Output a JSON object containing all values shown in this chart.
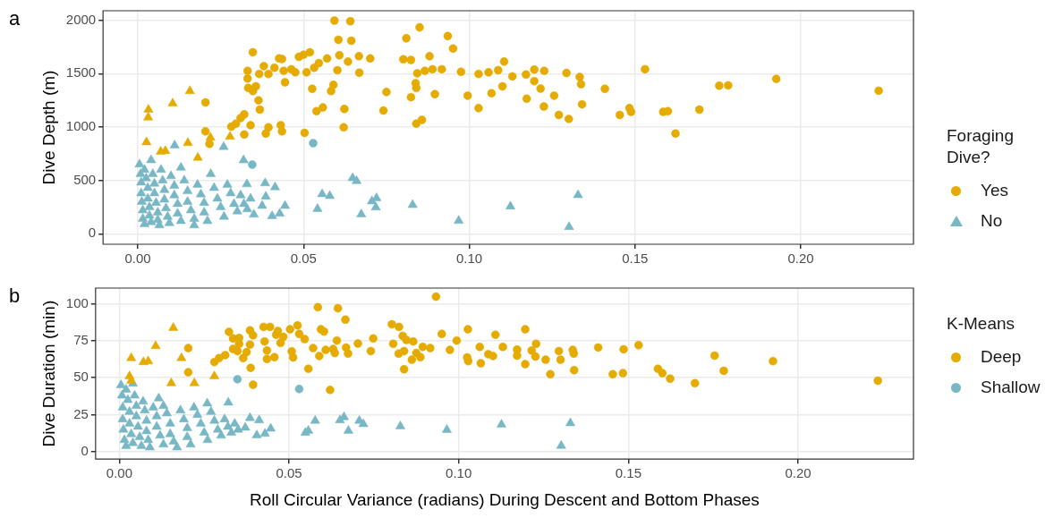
{
  "chart_data": [
    {
      "type": "scatter",
      "title": "a",
      "ylabel": "Dive Depth (m)",
      "legend_title": "Foraging Dive?",
      "legend": "right",
      "grid": true,
      "xlim": [
        -0.0105,
        0.234
      ],
      "ylim": [
        -98,
        2089
      ],
      "xticks": [
        {
          "value": 0,
          "label": "0.00"
        },
        {
          "value": 0.05,
          "label": "0.05"
        },
        {
          "value": 0.1,
          "label": "0.10"
        },
        {
          "value": 0.15,
          "label": "0.15"
        },
        {
          "value": 0.2,
          "label": "0.20"
        }
      ],
      "yticks": [
        0,
        500,
        1000,
        1500,
        2000
      ],
      "series": [
        {
          "name": "Yes",
          "marker": "circle",
          "x": [
            0.0347,
            0.0593,
            0.0641,
            0.0605,
            0.0644,
            0.081,
            0.085,
            0.0935,
            0.0951,
            0.0426,
            0.0435,
            0.0486,
            0.05,
            0.0519,
            0.0571,
            0.0608,
            0.0634,
            0.0667,
            0.0701,
            0.0801,
            0.0824,
            0.088,
            0.0331,
            0.0331,
            0.038,
            0.0366,
            0.0394,
            0.0412,
            0.044,
            0.0463,
            0.0475,
            0.0509,
            0.0532,
            0.0546,
            0.0602,
            0.0668,
            0.0843,
            0.0866,
            0.0889,
            0.0917,
            0.0975,
            0.1028,
            0.1058,
            0.0333,
            0.0356,
            0.0347,
            0.0444,
            0.0526,
            0.0583,
            0.059,
            0.075,
            0.0838,
            0.084,
            0.0896,
            0.0824,
            0.0995,
            0.0204,
            0.0364,
            0.0368,
            0.0321,
            0.031,
            0.0296,
            0.0282,
            0.034,
            0.0394,
            0.0431,
            0.0435,
            0.0386,
            0.0321,
            0.0204,
            0.0216,
            0.0503,
            0.0539,
            0.0558,
            0.0623,
            0.0621,
            0.0741,
            0.084,
            0.0857,
            0.1028,
            0.1087,
            0.1105,
            0.113,
            0.1067,
            0.11,
            0.1171,
            0.1196,
            0.1196,
            0.1226,
            0.1215,
            0.1173,
            0.1225,
            0.1256,
            0.1293,
            0.1333,
            0.1337,
            0.127,
            0.13,
            0.134,
            0.1409,
            0.153,
            0.1454,
            0.1483,
            0.1488,
            0.1585,
            0.1599,
            0.1622,
            0.1694,
            0.1754,
            0.1781,
            0.1926,
            0.2235,
            0.0345,
            0.0529
          ],
          "values": [
            1700,
            1997,
            1991,
            1817,
            1808,
            1831,
            1933,
            1852,
            1735,
            1642,
            1637,
            1657,
            1677,
            1700,
            1642,
            1672,
            1613,
            1663,
            1642,
            1634,
            1628,
            1663,
            1526,
            1454,
            1570,
            1497,
            1497,
            1555,
            1526,
            1541,
            1512,
            1512,
            1555,
            1599,
            1532,
            1509,
            1503,
            1526,
            1541,
            1541,
            1517,
            1497,
            1512,
            1366,
            1381,
            1337,
            1419,
            1358,
            1337,
            1395,
            1328,
            1410,
            1366,
            1308,
            1279,
            1294,
            1230,
            1250,
            1163,
            1119,
            1084,
            1032,
            1003,
            1017,
            997,
            1017,
            959,
            939,
            930,
            959,
            843,
            945,
            1148,
            1183,
            1169,
            997,
            1154,
            1032,
            1067,
            1177,
            1532,
            1613,
            1474,
            1317,
            1381,
            1491,
            1538,
            1430,
            1526,
            1360,
            1265,
            1192,
            1294,
            1506,
            1468,
            1401,
            1113,
            1076,
            1212,
            1358,
            1541,
            1113,
            1177,
            1142,
            1142,
            1148,
            939,
            1163,
            1387,
            1390,
            1451,
            1340,
            648,
            849
          ],
          "colors": [
            "#e5ab00",
            "#e5ab00",
            "#e5ab00",
            "#e5ab00",
            "#e5ab00",
            "#e5ab00",
            "#e5ab00",
            "#e5ab00",
            "#e5ab00",
            "#e5ab00",
            "#e5ab00",
            "#e5ab00",
            "#e5ab00",
            "#e5ab00",
            "#e5ab00",
            "#e5ab00",
            "#e5ab00",
            "#e5ab00",
            "#e5ab00",
            "#e5ab00",
            "#e5ab00",
            "#e5ab00",
            "#e5ab00",
            "#e5ab00",
            "#e5ab00",
            "#e5ab00",
            "#e5ab00",
            "#e5ab00",
            "#e5ab00",
            "#e5ab00",
            "#e5ab00",
            "#e5ab00",
            "#e5ab00",
            "#e5ab00",
            "#e5ab00",
            "#e5ab00",
            "#e5ab00",
            "#e5ab00",
            "#e5ab00",
            "#e5ab00",
            "#e5ab00",
            "#e5ab00",
            "#e5ab00",
            "#e5ab00",
            "#e5ab00",
            "#e5ab00",
            "#e5ab00",
            "#e5ab00",
            "#e5ab00",
            "#e5ab00",
            "#e5ab00",
            "#e5ab00",
            "#e5ab00",
            "#e5ab00",
            "#e5ab00",
            "#e5ab00",
            "#e5ab00",
            "#e5ab00",
            "#e5ab00",
            "#e5ab00",
            "#e5ab00",
            "#e5ab00",
            "#e5ab00",
            "#e5ab00",
            "#e5ab00",
            "#e5ab00",
            "#e5ab00",
            "#e5ab00",
            "#e5ab00",
            "#e5ab00",
            "#e5ab00",
            "#e5ab00",
            "#e5ab00",
            "#e5ab00",
            "#e5ab00",
            "#e5ab00",
            "#e5ab00",
            "#e5ab00",
            "#e5ab00",
            "#e5ab00",
            "#e5ab00",
            "#e5ab00",
            "#e5ab00",
            "#e5ab00",
            "#e5ab00",
            "#e5ab00",
            "#e5ab00",
            "#e5ab00",
            "#e5ab00",
            "#e5ab00",
            "#e5ab00",
            "#e5ab00",
            "#e5ab00",
            "#e5ab00",
            "#e5ab00",
            "#e5ab00",
            "#e5ab00",
            "#e5ab00",
            "#e5ab00",
            "#e5ab00",
            "#e5ab00",
            "#e5ab00",
            "#e5ab00",
            "#e5ab00",
            "#e5ab00",
            "#e5ab00",
            "#e5ab00",
            "#e5ab00",
            "#e5ab00",
            "#e5ab00",
            "#e5ab00",
            "#e5ab00",
            "#78b7c5",
            "#78b7c5"
          ]
        },
        {
          "name": "No",
          "marker": "triangle",
          "x": [
            0.0005,
            0.0008,
            0.001,
            0.001,
            0.0012,
            0.0015,
            0.0015,
            0.002,
            0.002,
            0.0025,
            0.003,
            0.003,
            0.0035,
            0.0035,
            0.004,
            0.004,
            0.0045,
            0.005,
            0.005,
            0.0055,
            0.006,
            0.006,
            0.0065,
            0.007,
            0.0075,
            0.008,
            0.008,
            0.0085,
            0.009,
            0.0095,
            0.01,
            0.011,
            0.011,
            0.012,
            0.012,
            0.013,
            0.013,
            0.014,
            0.015,
            0.015,
            0.016,
            0.017,
            0.017,
            0.018,
            0.019,
            0.02,
            0.02,
            0.021,
            0.022,
            0.023,
            0.024,
            0.025,
            0.026,
            0.027,
            0.028,
            0.029,
            0.03,
            0.031,
            0.032,
            0.033,
            0.034,
            0.035,
            0.0111,
            0.0259,
            0.0319,
            0.0384,
            0.0414,
            0.0329,
            0.0386,
            0.0375,
            0.0444,
            0.0405,
            0.0428,
            0.0542,
            0.0556,
            0.0579,
            0.0648,
            0.066,
            0.0674,
            0.0706,
            0.072,
            0.0718,
            0.0829,
            0.0968,
            0.1124,
            0.1328,
            0.1301,
            0.0032,
            0.0031,
            0.0026,
            0.0105,
            0.0157,
            0.0069,
            0.0083,
            0.0151,
            0.0181,
            0.0219,
            0.0278
          ],
          "values": [
            650,
            560,
            480,
            380,
            300,
            220,
            140,
            90,
            600,
            520,
            430,
            330,
            250,
            170,
            110,
            690,
            560,
            470,
            380,
            290,
            200,
            130,
            80,
            600,
            500,
            410,
            320,
            240,
            160,
            100,
            540,
            450,
            360,
            280,
            190,
            120,
            620,
            500,
            400,
            300,
            220,
            140,
            80,
            460,
            370,
            290,
            200,
            120,
            560,
            430,
            330,
            250,
            160,
            460,
            380,
            280,
            210,
            360,
            280,
            230,
            330,
            180,
            828,
            814,
            689,
            474,
            436,
            465,
            349,
            262,
            262,
            166,
            189,
            233,
            372,
            355,
            523,
            494,
            183,
            305,
            334,
            247,
            270,
            122,
            256,
            363,
            64,
            1163,
            1090,
            858,
            1221,
            1337,
            770,
            776,
            852,
            712,
            901,
            910
          ],
          "colors": [
            "#78b7c5",
            "#78b7c5",
            "#78b7c5",
            "#78b7c5",
            "#78b7c5",
            "#78b7c5",
            "#78b7c5",
            "#78b7c5",
            "#78b7c5",
            "#78b7c5",
            "#78b7c5",
            "#78b7c5",
            "#78b7c5",
            "#78b7c5",
            "#78b7c5",
            "#78b7c5",
            "#78b7c5",
            "#78b7c5",
            "#78b7c5",
            "#78b7c5",
            "#78b7c5",
            "#78b7c5",
            "#78b7c5",
            "#78b7c5",
            "#78b7c5",
            "#78b7c5",
            "#78b7c5",
            "#78b7c5",
            "#78b7c5",
            "#78b7c5",
            "#78b7c5",
            "#78b7c5",
            "#78b7c5",
            "#78b7c5",
            "#78b7c5",
            "#78b7c5",
            "#78b7c5",
            "#78b7c5",
            "#78b7c5",
            "#78b7c5",
            "#78b7c5",
            "#78b7c5",
            "#78b7c5",
            "#78b7c5",
            "#78b7c5",
            "#78b7c5",
            "#78b7c5",
            "#78b7c5",
            "#78b7c5",
            "#78b7c5",
            "#78b7c5",
            "#78b7c5",
            "#78b7c5",
            "#78b7c5",
            "#78b7c5",
            "#78b7c5",
            "#78b7c5",
            "#78b7c5",
            "#78b7c5",
            "#78b7c5",
            "#78b7c5",
            "#78b7c5",
            "#78b7c5",
            "#78b7c5",
            "#78b7c5",
            "#78b7c5",
            "#78b7c5",
            "#78b7c5",
            "#78b7c5",
            "#78b7c5",
            "#78b7c5",
            "#78b7c5",
            "#78b7c5",
            "#78b7c5",
            "#78b7c5",
            "#78b7c5",
            "#78b7c5",
            "#78b7c5",
            "#78b7c5",
            "#78b7c5",
            "#78b7c5",
            "#78b7c5",
            "#78b7c5",
            "#78b7c5",
            "#78b7c5",
            "#78b7c5",
            "#78b7c5",
            "#e5ab00",
            "#e5ab00",
            "#e5ab00",
            "#e5ab00",
            "#e5ab00",
            "#e5ab00",
            "#e5ab00",
            "#e5ab00",
            "#e5ab00",
            "#e5ab00",
            "#e5ab00"
          ]
        }
      ]
    },
    {
      "type": "scatter",
      "title": "b",
      "xlabel": "Roll Circular Variance (radians) During Descent and Bottom Phases",
      "ylabel": "Dive Duration (min)",
      "legend_title": "K-Means",
      "legend": "right",
      "grid": true,
      "xlim": [
        -0.007,
        0.234
      ],
      "ylim": [
        -4.9,
        110.5
      ],
      "xticks": [
        {
          "value": 0,
          "label": "0.00"
        },
        {
          "value": 0.05,
          "label": "0.05"
        },
        {
          "value": 0.1,
          "label": "0.10"
        },
        {
          "value": 0.15,
          "label": "0.15"
        },
        {
          "value": 0.2,
          "label": "0.20"
        }
      ],
      "yticks": [
        0,
        25,
        50,
        75,
        100
      ],
      "series": [
        {
          "name": "Deep",
          "marker": "circle",
          "color": "#e5ab00",
          "x": [
            0.0933,
            0.0585,
            0.0644,
            0.0666,
            0.0803,
            0.0824,
            0.095,
            0.1027,
            0.0323,
            0.0385,
            0.0425,
            0.0444,
            0.0467,
            0.0503,
            0.0525,
            0.0594,
            0.0603,
            0.0335,
            0.0353,
            0.0394,
            0.0462,
            0.0483,
            0.053,
            0.0546,
            0.0641,
            0.0748,
            0.0835,
            0.0846,
            0.0866,
            0.0994,
            0.1062,
            0.0203,
            0.0353,
            0.0385,
            0.0428,
            0.0475,
            0.0703,
            0.0807,
            0.0894,
            0.0916,
            0.0974,
            0.0335,
            0.0348,
            0.0375,
            0.0435,
            0.0508,
            0.0571,
            0.0608,
            0.063,
            0.0668,
            0.0741,
            0.0839,
            0.0875,
            0.0312,
            0.0294,
            0.028,
            0.0365,
            0.0435,
            0.0457,
            0.0512,
            0.0589,
            0.0635,
            0.0674,
            0.0823,
            0.0862,
            0.0887,
            0.1025,
            0.1028,
            0.1065,
            0.0387,
            0.0557,
            0.0839,
            0.0203,
            0.0394,
            0.0621,
            0.1108,
            0.1196,
            0.113,
            0.1087,
            0.1101,
            0.1172,
            0.1172,
            0.1196,
            0.1215,
            0.1228,
            0.1226,
            0.1256,
            0.127,
            0.1295,
            0.13,
            0.1336,
            0.1339,
            0.134,
            0.1411,
            0.1454,
            0.1484,
            0.1486,
            0.153,
            0.1587,
            0.16,
            0.1623,
            0.1696,
            0.1754,
            0.1781,
            0.1926,
            0.2235
          ],
          "values": [
            104.7,
            97.6,
            96.9,
            89.2,
            86.1,
            84.3,
            79.6,
            82.7,
            81,
            82,
            84.3,
            84.3,
            81.6,
            82.7,
            85.3,
            82.7,
            81.2,
            76.5,
            76.9,
            78.6,
            79,
            77.6,
            79.6,
            76.1,
            75.1,
            76.5,
            78.2,
            75.5,
            74.5,
            75.1,
            70.8,
            70,
            72.9,
            72.4,
            74.5,
            73.5,
            73.1,
            72.9,
            70.8,
            70,
            68.8,
            69.4,
            68,
            67.3,
            68.4,
            67.8,
            70,
            68.8,
            69.4,
            70.4,
            68,
            68,
            66.7,
            65.3,
            63.3,
            60.6,
            63.3,
            62.7,
            63.9,
            63.7,
            64.7,
            66.7,
            66.3,
            66.3,
            62.2,
            63.9,
            63.7,
            61.2,
            59.8,
            56.7,
            56.1,
            55.7,
            53.7,
            45.3,
            41.8,
            79,
            82.7,
            70.8,
            65.9,
            64.7,
            69,
            64.9,
            59.2,
            68.4,
            72.9,
            64.3,
            62.2,
            52.4,
            68,
            62.2,
            68.8,
            66.3,
            55.1,
            70.4,
            52.4,
            53.1,
            69.2,
            72,
            56.1,
            53.1,
            49.4,
            46.3,
            64.9,
            54.7,
            61.2,
            48
          ]
        },
        {
          "marker": "triangle",
          "color": "#e5ab00",
          "x": [
            0.0035,
            0.003,
            0.0035,
            0.0071,
            0.0085,
            0.0107,
            0.0159,
            0.0183,
            0.0153,
            0.0221,
            0.028
          ],
          "values": [
            63.3,
            51,
            48,
            60.6,
            61.2,
            71.4,
            83.7,
            63.3,
            46.3,
            46.3,
            51
          ]
        },
        {
          "name": "Shallow",
          "marker": "circle",
          "color": "#78b7c5",
          "x": [
            0.0348,
            0.053
          ],
          "values": [
            49,
            42.4
          ]
        },
        {
          "marker": "triangle",
          "color": "#78b7c5",
          "x": [
            0.0005,
            0.0008,
            0.001,
            0.001,
            0.0012,
            0.0015,
            0.002,
            0.002,
            0.0025,
            0.003,
            0.003,
            0.0035,
            0.004,
            0.004,
            0.0045,
            0.005,
            0.005,
            0.0055,
            0.006,
            0.0065,
            0.007,
            0.0075,
            0.008,
            0.008,
            0.0085,
            0.009,
            0.01,
            0.011,
            0.011,
            0.012,
            0.013,
            0.013,
            0.014,
            0.015,
            0.015,
            0.016,
            0.017,
            0.018,
            0.019,
            0.02,
            0.02,
            0.021,
            0.022,
            0.023,
            0.024,
            0.025,
            0.026,
            0.027,
            0.028,
            0.029,
            0.03,
            0.031,
            0.032,
            0.033,
            0.034,
            0.035,
            0.0321,
            0.0259,
            0.0116,
            0.0385,
            0.0412,
            0.0371,
            0.0405,
            0.0429,
            0.0446,
            0.0548,
            0.0557,
            0.0577,
            0.065,
            0.0662,
            0.0675,
            0.0707,
            0.0719,
            0.0828,
            0.0965,
            0.1126,
            0.1329,
            0.1302
          ],
          "values": [
            45,
            38,
            30,
            22,
            15,
            8,
            4,
            42,
            35,
            27,
            19,
            12,
            6,
            46,
            38,
            31,
            24,
            17,
            10,
            4,
            34,
            28,
            21,
            14,
            8,
            3,
            30,
            24,
            17,
            11,
            5,
            31,
            26,
            19,
            12,
            7,
            3,
            28,
            22,
            16,
            10,
            5,
            30,
            25,
            19,
            13,
            8,
            27,
            21,
            15,
            11,
            22,
            17,
            13,
            19,
            15,
            33.3,
            32.7,
            36.1,
            22.9,
            21.4,
            16.3,
            11.2,
            12.2,
            15.7,
            12.9,
            14.3,
            21,
            21.4,
            23.5,
            14.3,
            21,
            18.8,
            17.3,
            14.9,
            18.4,
            19.4,
            4.1
          ]
        }
      ]
    }
  ]
}
